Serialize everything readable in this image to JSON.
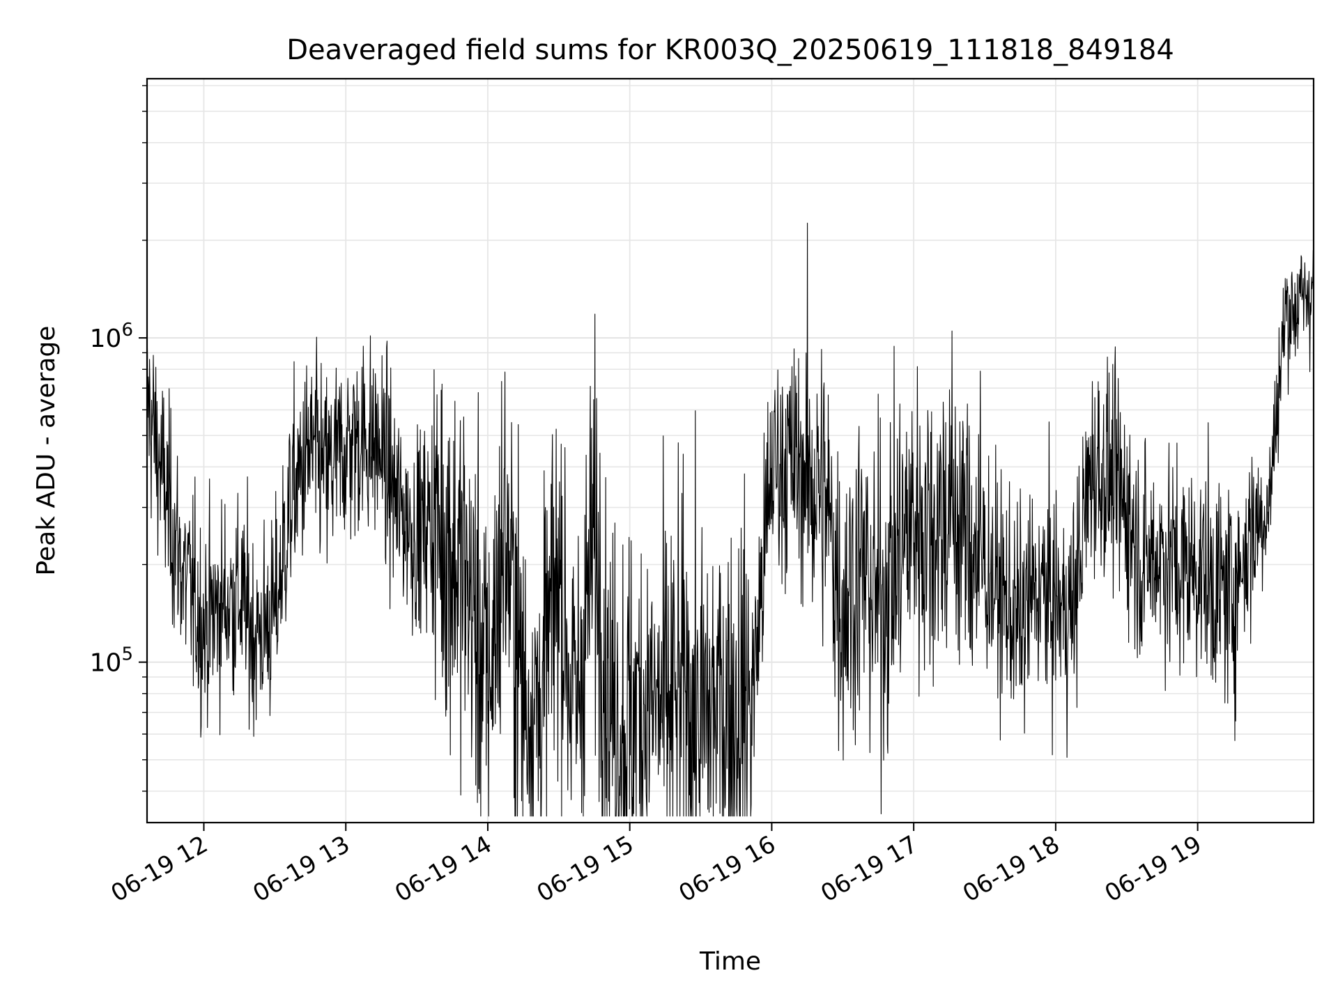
{
  "chart_data": {
    "type": "line",
    "title": "Deaveraged field sums for KR003Q_20250619_111818_849184",
    "xlabel": "Time",
    "ylabel": "Peak ADU - average",
    "yscale": "log",
    "xlim": [
      "06-19 11:36",
      "06-19 19:49"
    ],
    "ylim": [
      32000,
      6300000
    ],
    "x_ticks": [
      "06-19 12",
      "06-19 13",
      "06-19 14",
      "06-19 15",
      "06-19 16",
      "06-19 17",
      "06-19 18",
      "06-19 19"
    ],
    "y_ticks": [
      {
        "value": 100000,
        "base": "10",
        "exp": "5"
      },
      {
        "value": 1000000,
        "base": "10",
        "exp": "6"
      }
    ],
    "grid": true,
    "line_color": "#000000",
    "series": [
      {
        "x": [
          "11:36",
          "11:45",
          "11:52",
          "12:00",
          "12:07",
          "12:15",
          "12:22",
          "12:30",
          "12:37",
          "12:45",
          "12:52",
          "13:00",
          "13:07",
          "13:15",
          "13:22",
          "13:30",
          "13:37",
          "13:45",
          "13:52",
          "14:00",
          "14:07",
          "14:15",
          "14:22",
          "14:30",
          "14:37",
          "14:45",
          "14:52",
          "15:00",
          "15:07",
          "15:15",
          "15:22",
          "15:30",
          "15:37",
          "15:45",
          "15:52",
          "16:00",
          "16:07",
          "16:15",
          "16:22",
          "16:30",
          "16:37",
          "16:45",
          "16:52",
          "17:00",
          "17:07",
          "17:15",
          "17:22",
          "17:30",
          "17:37",
          "17:45",
          "17:52",
          "18:00",
          "18:07",
          "18:15",
          "18:22",
          "18:30",
          "18:37",
          "18:45",
          "18:52",
          "19:00",
          "19:07",
          "19:15",
          "19:22",
          "19:30",
          "19:37",
          "19:45",
          "19:49"
        ],
        "y": [
          650000,
          300000,
          180000,
          130000,
          150000,
          160000,
          120000,
          140000,
          320000,
          450000,
          380000,
          460000,
          500000,
          450000,
          300000,
          250000,
          280000,
          220000,
          170000,
          80000,
          260000,
          80000,
          70000,
          200000,
          65000,
          250000,
          70000,
          65000,
          75000,
          70000,
          80000,
          65000,
          75000,
          72000,
          80000,
          400000,
          420000,
          380000,
          330000,
          150000,
          200000,
          150000,
          200000,
          280000,
          260000,
          300000,
          250000,
          200000,
          160000,
          130000,
          170000,
          150000,
          140000,
          400000,
          380000,
          300000,
          200000,
          220000,
          190000,
          200000,
          170000,
          160000,
          250000,
          300000,
          1200000,
          1300000,
          1500000
        ]
      }
    ]
  }
}
